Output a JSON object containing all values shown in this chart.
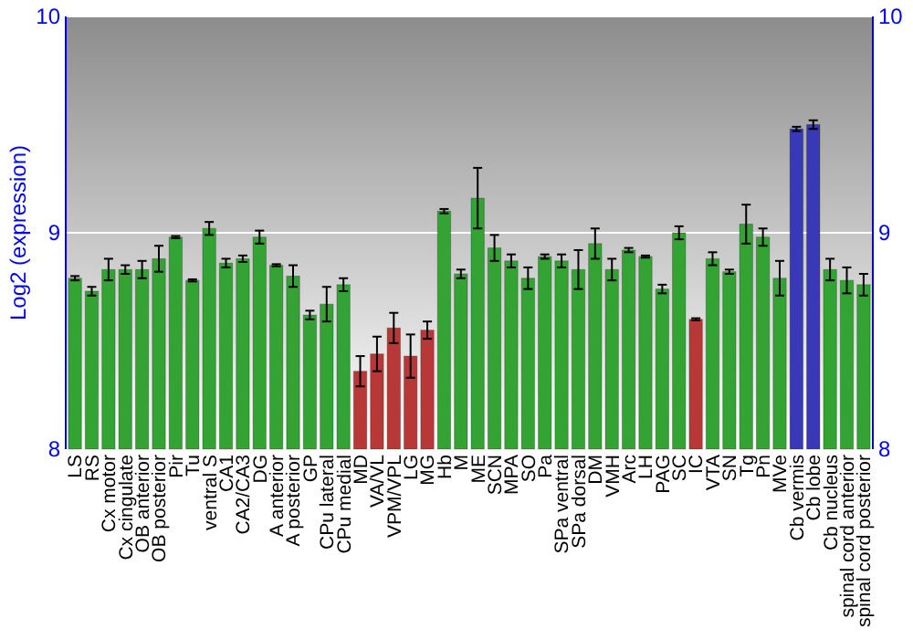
{
  "chart_data": {
    "type": "bar",
    "ylabel": "Log2 (expression)",
    "categories": [
      "LS",
      "RS",
      "Cx motor",
      "Cx cingulate",
      "OB anterior",
      "OB posterior",
      "Pir",
      "Tu",
      "ventral S",
      "CA1",
      "CA2/CA3",
      "DG",
      "A anterior",
      "A posterior",
      "GP",
      "CPu lateral",
      "CPu medial",
      "MD",
      "VA/VL",
      "VPM/VPL",
      "LG",
      "MG",
      "Hb",
      "M",
      "ME",
      "SCN",
      "MPA",
      "SO",
      "Pa",
      "SPa ventral",
      "SPa dorsal",
      "DM",
      "VMH",
      "Arc",
      "LH",
      "PAG",
      "SC",
      "IC",
      "VTA",
      "SN",
      "Tg",
      "Pn",
      "MVe",
      "Cb vermis",
      "Cb lobe",
      "Cb nucleus",
      "spinal cord anterior",
      "spinal cord posterior"
    ],
    "values": [
      8.79,
      8.73,
      8.83,
      8.83,
      8.83,
      8.88,
      8.98,
      8.78,
      9.02,
      8.86,
      8.88,
      8.98,
      8.85,
      8.8,
      8.62,
      8.67,
      8.76,
      8.36,
      8.44,
      8.56,
      8.43,
      8.55,
      9.1,
      8.81,
      9.16,
      8.93,
      8.87,
      8.79,
      8.89,
      8.87,
      8.83,
      8.95,
      8.83,
      8.92,
      8.89,
      8.74,
      9.0,
      8.6,
      8.88,
      8.82,
      9.04,
      8.98,
      8.79,
      9.48,
      9.5,
      8.83,
      8.78,
      8.76
    ],
    "errors": [
      0.01,
      0.02,
      0.05,
      0.02,
      0.04,
      0.06,
      0.005,
      0.005,
      0.03,
      0.02,
      0.015,
      0.03,
      0.005,
      0.05,
      0.02,
      0.08,
      0.03,
      0.07,
      0.08,
      0.07,
      0.1,
      0.04,
      0.01,
      0.02,
      0.14,
      0.06,
      0.03,
      0.05,
      0.01,
      0.03,
      0.09,
      0.07,
      0.05,
      0.01,
      0.005,
      0.02,
      0.03,
      0.005,
      0.03,
      0.01,
      0.09,
      0.04,
      0.08,
      0.01,
      0.02,
      0.05,
      0.06,
      0.05
    ],
    "colors": [
      "#33a333",
      "#33a333",
      "#33a333",
      "#33a333",
      "#33a333",
      "#33a333",
      "#33a333",
      "#33a333",
      "#33a333",
      "#33a333",
      "#33a333",
      "#33a333",
      "#33a333",
      "#33a333",
      "#33a333",
      "#33a333",
      "#33a333",
      "#b83838",
      "#b83838",
      "#b83838",
      "#b83838",
      "#b83838",
      "#33a333",
      "#33a333",
      "#33a333",
      "#33a333",
      "#33a333",
      "#33a333",
      "#33a333",
      "#33a333",
      "#33a333",
      "#33a333",
      "#33a333",
      "#33a333",
      "#33a333",
      "#33a333",
      "#33a333",
      "#b83838",
      "#33a333",
      "#33a333",
      "#33a333",
      "#33a333",
      "#33a333",
      "#3838b8",
      "#3838b8",
      "#33a333",
      "#33a333",
      "#33a333"
    ],
    "ylim": [
      8,
      10
    ],
    "yticks": [
      8,
      9,
      10
    ],
    "y2lim": [
      8,
      10
    ],
    "y2ticks": [
      8,
      9,
      10
    ],
    "grid": "y"
  }
}
